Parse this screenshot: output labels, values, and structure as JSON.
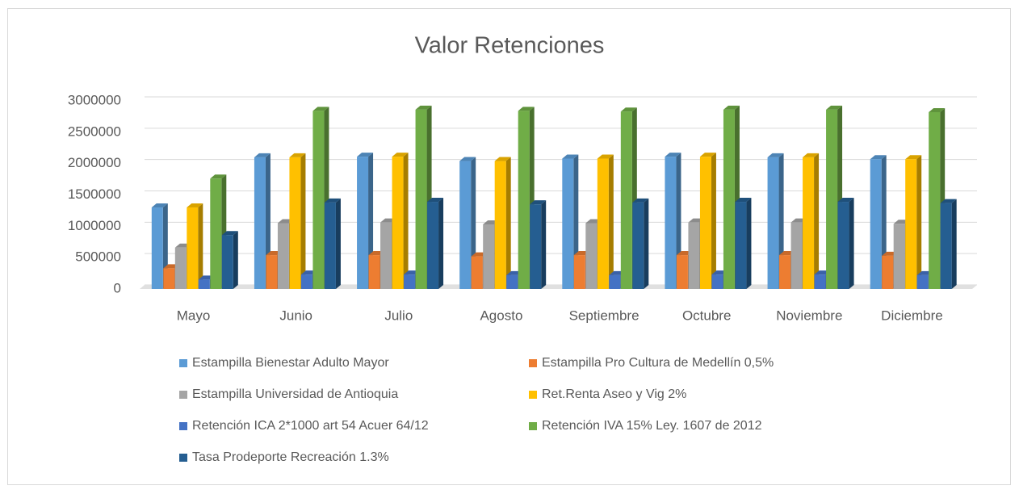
{
  "chart_data": {
    "type": "bar3d",
    "title": "Valor Retenciones",
    "categories": [
      "Mayo",
      "Junio",
      "Julio",
      "Agosto",
      "Septiembre",
      "Octubre",
      "Noviembre",
      "Diciembre"
    ],
    "series": [
      {
        "name": "Estampilla Bienestar Adulto Mayor",
        "color": "#5b9bd5",
        "values": [
          1300000,
          2100000,
          2110000,
          2040000,
          2080000,
          2110000,
          2100000,
          2070000
        ]
      },
      {
        "name": "Estampilla Pro Cultura de Medellín 0,5%",
        "color": "#ed7d31",
        "values": [
          330000,
          540000,
          540000,
          520000,
          540000,
          540000,
          540000,
          530000
        ]
      },
      {
        "name": "Estampilla Universidad de Antioquia",
        "color": "#a5a5a5",
        "values": [
          660000,
          1050000,
          1060000,
          1030000,
          1050000,
          1060000,
          1060000,
          1040000
        ]
      },
      {
        "name": "Ret.Renta Aseo y Vig 2%",
        "color": "#ffc000",
        "values": [
          1300000,
          2100000,
          2110000,
          2040000,
          2080000,
          2110000,
          2100000,
          2070000
        ]
      },
      {
        "name": "Retención ICA 2*1000 art 54 Acuer 64/12",
        "color": "#4472c4",
        "values": [
          150000,
          230000,
          230000,
          220000,
          220000,
          230000,
          230000,
          220000
        ]
      },
      {
        "name": "Retención IVA 15% Ley. 1607 de 2012",
        "color": "#70ad47",
        "values": [
          1760000,
          2840000,
          2860000,
          2840000,
          2830000,
          2860000,
          2860000,
          2820000
        ]
      },
      {
        "name": "Tasa Prodeporte  Recreación 1.3%",
        "color": "#255e91",
        "values": [
          860000,
          1380000,
          1390000,
          1350000,
          1380000,
          1390000,
          1390000,
          1370000
        ]
      }
    ],
    "ylim": [
      0,
      3000000
    ],
    "yticks": [
      0,
      500000,
      1000000,
      1500000,
      2000000,
      2500000,
      3000000
    ],
    "grid": true
  }
}
